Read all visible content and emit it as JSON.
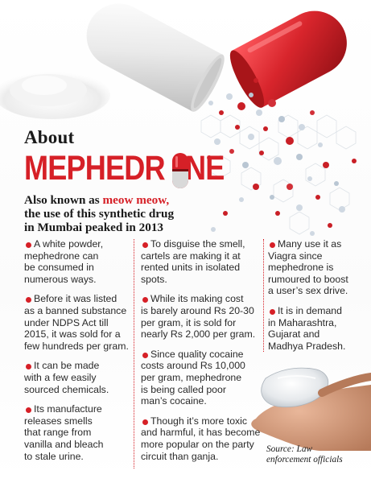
{
  "header": {
    "about": "About",
    "title_part1": "MEPHEDR",
    "title_part2": "NE",
    "subtitle_line1_prefix": "Also known as ",
    "subtitle_highlight": "meow meow,",
    "subtitle_line2": "the use of this synthetic drug",
    "subtitle_line3": "in Mumbai peaked in 2013"
  },
  "columns": [
    {
      "items": [
        {
          "lines": [
            "A white powder,",
            "mephedrone can",
            "be consumed in",
            "numerous ways."
          ]
        },
        {
          "lines": [
            "Before it was listed",
            "as a banned substance",
            "under NDPS Act till",
            "2015, it was sold for a",
            "few hundreds per gram."
          ]
        },
        {
          "lines": [
            "It can be made",
            "with a few easily",
            "sourced chemicals."
          ]
        },
        {
          "lines": [
            "Its manufacture",
            "releases smells",
            "that range from",
            "vanilla and bleach",
            "to stale urine."
          ]
        }
      ]
    },
    {
      "items": [
        {
          "lines": [
            "To disguise the smell,",
            "cartels are making it at",
            "rented units in isolated",
            "spots."
          ]
        },
        {
          "lines": [
            "While its making cost",
            "is barely around Rs 20-30",
            "per gram, it is sold for",
            "nearly Rs 2,000 per gram."
          ]
        },
        {
          "lines": [
            "Since quality cocaine",
            "costs around Rs 10,000",
            "per gram, mephedrone",
            "is being called poor",
            "man’s cocaine."
          ]
        },
        {
          "lines": [
            "Though it’s more toxic",
            "and harmful, it has become",
            "more popular on the party",
            "circuit than ganja."
          ]
        }
      ]
    },
    {
      "items": [
        {
          "lines": [
            "Many use it as",
            "Viagra since",
            "mephedrone is",
            "rumoured to boost",
            "a user’s sex drive."
          ]
        },
        {
          "lines": [
            "It is in demand",
            "in Maharashtra,",
            "Gujarat and",
            "Madhya Pradesh."
          ]
        }
      ]
    }
  ],
  "source": {
    "line1": "Source: Law",
    "line2": "enforcement officials"
  },
  "colors": {
    "accent": "#d62027",
    "text": "#1a1a1a",
    "capsule_red": "#d8252c",
    "capsule_white": "#f2f2f2"
  },
  "icons": [
    "capsule-icon",
    "bullet-dot"
  ]
}
